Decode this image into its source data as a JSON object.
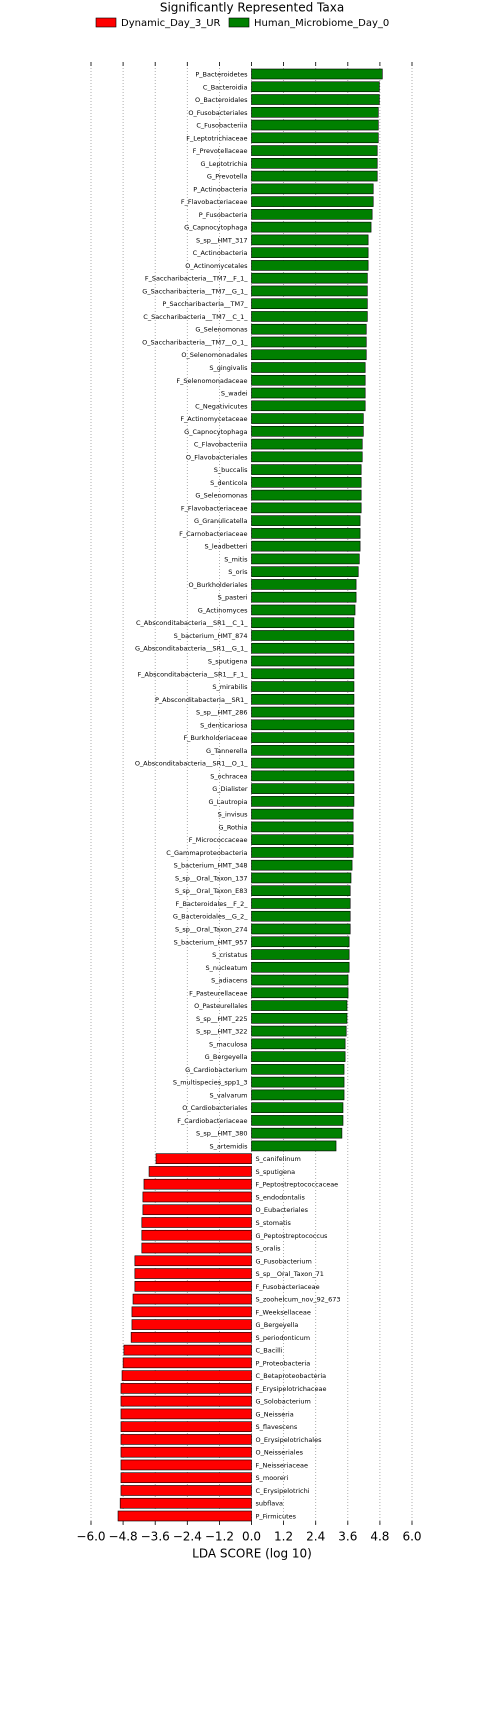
{
  "chart_data": {
    "type": "bar",
    "orientation": "horizontal",
    "title": "Significantly Represented Taxa",
    "xlabel": "LDA SCORE (log 10)",
    "categories": [
      "P_Bacteroidetes",
      "C_Bacteroidia",
      "O_Bacteroidales",
      "O_Fusobacteriales",
      "C_Fusobacteriia",
      "F_Leptotrichiaceae",
      "F_Prevotellaceae",
      "G_Leptotrichia",
      "G_Prevotella",
      "P_Actinobacteria",
      "F_Flavobacteriaceae",
      "P_Fusobacteria",
      "G_Capnocytophaga",
      "S_sp__HMT_317",
      "C_Actinobacteria",
      "O_Actinomycetales",
      "F_Saccharibacteria__TM7__F_1_",
      "G_Saccharibacteria__TM7__G_1_",
      "P_Saccharibacteria__TM7_",
      "C_Saccharibacteria__TM7__C_1_",
      "G_Selenomonas",
      "O_Saccharibacteria__TM7__O_1_",
      "O_Selenomonadales",
      "S_gingivalis",
      "F_Selenomonadaceae",
      "S_wadei",
      "C_Negativicutes",
      "F_Actinomycetaceae",
      "G_Capnocytophaga",
      "C_Flavobacteriia",
      "O_Flavobacteriales",
      "S_buccalis",
      "S_denticola",
      "G_Selenomonas",
      "F_Flavobacteriaceae",
      "G_Granulicatella",
      "F_Carnobacteriaceae",
      "S_leadbetteri",
      "S_mitis",
      "S_oris",
      "O_Burkholderiales",
      "S_pasteri",
      "G_Actinomyces",
      "C_Absconditabacteria__SR1__C_1_",
      "S_bacterium_HMT_874",
      "G_Absconditabacteria__SR1__G_1_",
      "S_sputigena",
      "F_Absconditabacteria__SR1__F_1_",
      "S_mirabilis",
      "P_Absconditabacteria__SR1_",
      "S_sp__HMT_286",
      "S_denticariosa",
      "F_Burkholderiaceae",
      "G_Tannerella",
      "O_Absconditabacteria__SR1__O_1_",
      "S_ochracea",
      "G_Dialister",
      "G_Lautropia",
      "S_invisus",
      "G_Rothia",
      "F_Micrococcaceae",
      "C_Gammaproteobacteria",
      "S_bacterium_HMT_348",
      "S_sp__Oral_Taxon_137",
      "S_sp__Oral_Taxon_E83",
      "F_Bacteroidales__F_2_",
      "G_Bacteroidales__G_2_",
      "S_sp__Oral_Taxon_274",
      "S_bacterium_HMT_957",
      "S_cristatus",
      "S_nucleatum",
      "S_adiacens",
      "F_Pasteurellaceae",
      "O_Pasteurellales",
      "S_sp__HMT_225",
      "S_sp__HMT_322",
      "S_maculosa",
      "G_Bergeyella",
      "G_Cardiobacterium",
      "S_multispecies_spp1_3",
      "S_valvarum",
      "O_Cardiobacteriales",
      "F_Cardiobacteriaceae",
      "S_sp__HMT_380",
      "S_artemidis",
      "S_canifelinum",
      "S_sputigena",
      "F_Peptostreptococcaceae",
      "S_endodontalis",
      "O_Eubacteriales",
      "S_stomatis",
      "G_Peptostreptococcus",
      "S_oralis",
      "G_Fusobacterium",
      "S_sp__Oral_Taxon_71",
      "F_Fusobacteriaceae",
      "S_zoohelcum_nov_92_673",
      "F_Weeksellaceae",
      "G_Bergeyella",
      "S_periodonticum",
      "C_Bacilli",
      "P_Proteobacteria",
      "C_Betaproteobacteria",
      "F_Erysipelotrichaceae",
      "G_Solobacterium",
      "G_Neisseria",
      "S_flavescens",
      "O_Erysipelotrichales",
      "O_Neisseriales",
      "F_Neisseriaceae",
      "S_mooreri",
      "C_Erysipelotrichi",
      "subflava",
      "P_Firmicutes"
    ],
    "series": [
      {
        "name": "Dynamic_Day_3_UR",
        "color": "#ff0000",
        "values": [
          null,
          null,
          null,
          null,
          null,
          null,
          null,
          null,
          null,
          null,
          null,
          null,
          null,
          null,
          null,
          null,
          null,
          null,
          null,
          null,
          null,
          null,
          null,
          null,
          null,
          null,
          null,
          null,
          null,
          null,
          null,
          null,
          null,
          null,
          null,
          null,
          null,
          null,
          null,
          null,
          null,
          null,
          null,
          null,
          null,
          null,
          null,
          null,
          null,
          null,
          null,
          null,
          null,
          null,
          null,
          null,
          null,
          null,
          null,
          null,
          null,
          null,
          null,
          null,
          null,
          null,
          null,
          null,
          null,
          null,
          null,
          null,
          null,
          null,
          null,
          null,
          null,
          null,
          null,
          null,
          null,
          null,
          null,
          null,
          null,
          -3.57,
          -3.83,
          -4.02,
          -4.06,
          -4.06,
          -4.1,
          -4.1,
          -4.1,
          -4.36,
          -4.36,
          -4.36,
          -4.43,
          -4.47,
          -4.47,
          -4.5,
          -4.77,
          -4.8,
          -4.84,
          -4.88,
          -4.88,
          -4.88,
          -4.88,
          -4.88,
          -4.88,
          -4.88,
          -4.88,
          -4.88,
          -4.91,
          -4.99
        ]
      },
      {
        "name": "Human_Microbiome_Day_0",
        "color": "#008000",
        "values": [
          4.89,
          4.78,
          4.78,
          4.74,
          4.74,
          4.74,
          4.7,
          4.7,
          4.7,
          4.55,
          4.55,
          4.51,
          4.47,
          4.36,
          4.36,
          4.36,
          4.33,
          4.33,
          4.33,
          4.33,
          4.29,
          4.29,
          4.29,
          4.25,
          4.25,
          4.25,
          4.25,
          4.18,
          4.18,
          4.14,
          4.14,
          4.1,
          4.1,
          4.1,
          4.1,
          4.06,
          4.06,
          4.06,
          4.03,
          3.99,
          3.91,
          3.91,
          3.87,
          3.83,
          3.83,
          3.83,
          3.83,
          3.83,
          3.83,
          3.83,
          3.83,
          3.83,
          3.83,
          3.83,
          3.83,
          3.83,
          3.83,
          3.83,
          3.8,
          3.8,
          3.8,
          3.8,
          3.76,
          3.72,
          3.69,
          3.69,
          3.69,
          3.69,
          3.65,
          3.65,
          3.65,
          3.61,
          3.61,
          3.57,
          3.57,
          3.54,
          3.5,
          3.5,
          3.46,
          3.46,
          3.46,
          3.42,
          3.42,
          3.38,
          3.16,
          null,
          null,
          null,
          null,
          null,
          null,
          null,
          null,
          null,
          null,
          null,
          null,
          null,
          null,
          null,
          null,
          null,
          null,
          null,
          null,
          null,
          null,
          null,
          null,
          null,
          null,
          null,
          null,
          null
        ]
      }
    ],
    "xlim": [
      -6.0,
      6.0
    ],
    "xticks": [
      {
        "value": -6.0,
        "label": "−6.0"
      },
      {
        "value": -4.8,
        "label": "−4.8"
      },
      {
        "value": -3.6,
        "label": "−3.6"
      },
      {
        "value": -2.4,
        "label": "−2.4"
      },
      {
        "value": -1.2,
        "label": "−1.2"
      },
      {
        "value": 0,
        "label": "0.0"
      },
      1.2,
      2.4,
      3.6,
      4.8,
      {
        "value": 6.0,
        "label": "6.0"
      }
    ],
    "grid": true,
    "legend": "top"
  }
}
